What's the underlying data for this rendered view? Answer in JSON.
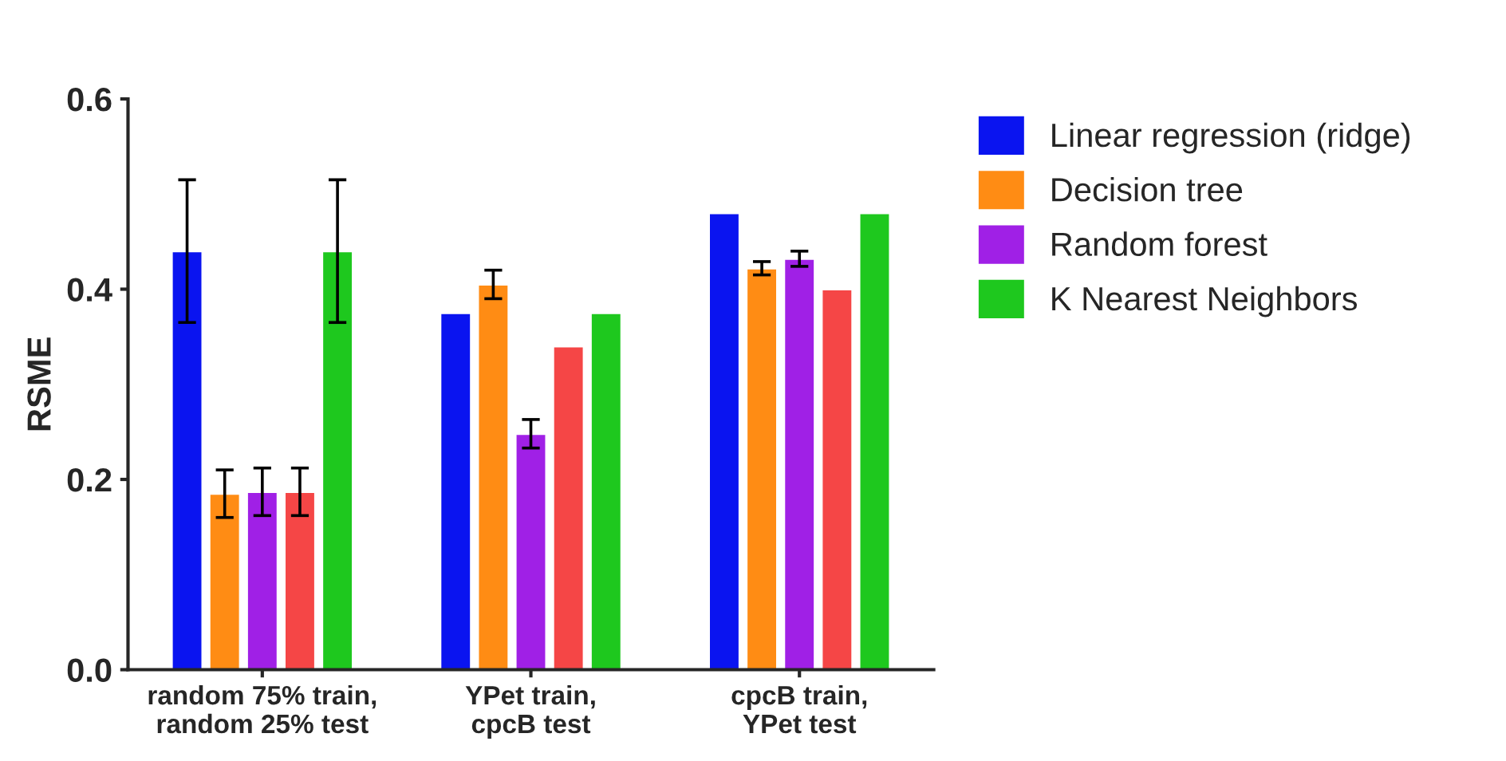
{
  "chart_data": {
    "type": "bar",
    "ylabel": "RSME",
    "categories": [
      "random 75% train,\nrandom 25% test",
      "YPet train,\ncpcB test",
      "cpcB train,\nYPet test"
    ],
    "series": [
      {
        "name": "Linear regression (ridge)",
        "color": "#0a14f0",
        "values": [
          0.44,
          0.375,
          0.48
        ],
        "errors": [
          0.075,
          null,
          null
        ]
      },
      {
        "name": "Decision tree",
        "color": "#ff8c14",
        "values": [
          0.185,
          0.405,
          0.422
        ],
        "errors": [
          0.025,
          0.015,
          0.007
        ]
      },
      {
        "name": "Random forest",
        "color": "#a020e6",
        "values": [
          0.187,
          0.248,
          0.432
        ],
        "errors": [
          0.025,
          0.015,
          0.008
        ]
      },
      {
        "color": "#f54646",
        "values": [
          0.187,
          0.34,
          0.4
        ],
        "errors": [
          0.025,
          null,
          null
        ]
      },
      {
        "name": "K Nearest Neighbors",
        "color": "#1ec81e",
        "values": [
          0.44,
          0.375,
          0.48
        ],
        "errors": [
          0.075,
          null,
          null
        ]
      }
    ],
    "ylim": [
      0,
      0.6
    ],
    "yticks": [
      {
        "value": 0,
        "label": "0.0"
      },
      0.2,
      0.4,
      0.6
    ],
    "grid": false,
    "legend": "top right"
  }
}
